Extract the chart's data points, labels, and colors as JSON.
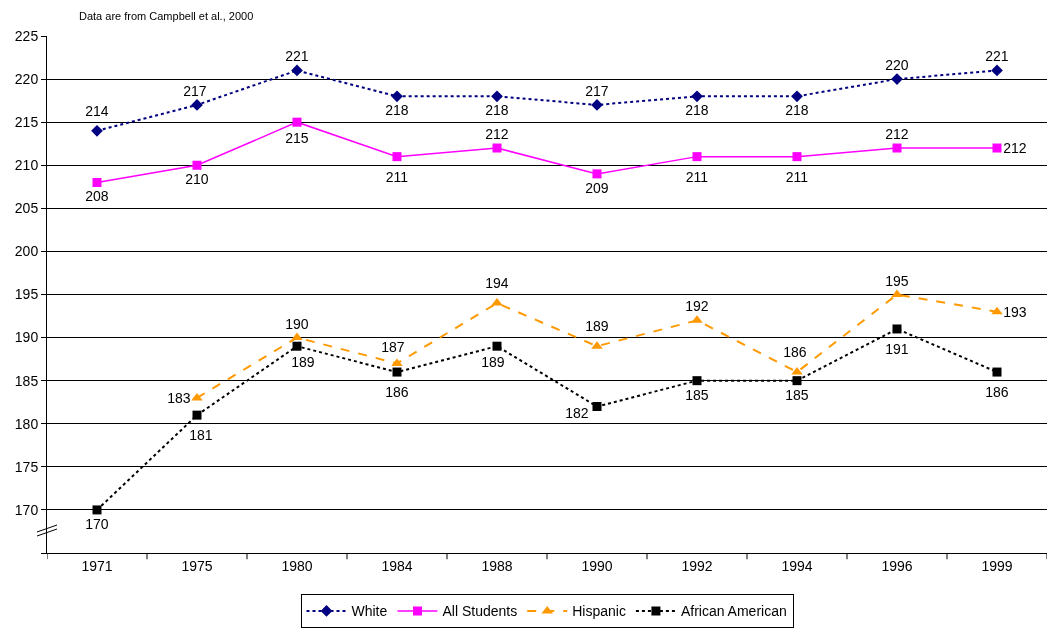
{
  "chart_data": {
    "type": "line",
    "annotations": [
      "Data are from Campbell et al., 2000"
    ],
    "categories": [
      "1971",
      "1975",
      "1980",
      "1984",
      "1988",
      "1990",
      "1992",
      "1994",
      "1996",
      "1999"
    ],
    "series": [
      {
        "name": "White",
        "color": "#000080",
        "marker": "diamond",
        "line_style": "dotted",
        "values": [
          214,
          217,
          221,
          218,
          218,
          217,
          218,
          218,
          220,
          221
        ]
      },
      {
        "name": "All Students",
        "color": "#ff00ff",
        "marker": "square",
        "line_style": "solid",
        "values": [
          208,
          210,
          215,
          211,
          212,
          209,
          211,
          211,
          212,
          212
        ]
      },
      {
        "name": "Hispanic",
        "color": "#ff9900",
        "marker": "triangle",
        "line_style": "dashed",
        "values": [
          null,
          183,
          190,
          187,
          194,
          189,
          192,
          186,
          195,
          193
        ]
      },
      {
        "name": "African American",
        "color": "#000000",
        "marker": "square",
        "line_style": "dotted",
        "values": [
          170,
          181,
          189,
          186,
          189,
          182,
          185,
          185,
          191,
          186
        ]
      }
    ],
    "ylim": [
      165,
      225
    ],
    "yticks": [
      {
        "value": 165,
        "label": null
      },
      170,
      175,
      180,
      185,
      190,
      195,
      200,
      205,
      210,
      215,
      220,
      225
    ],
    "grid": "y",
    "legend": "bottom",
    "data_labels": true
  }
}
